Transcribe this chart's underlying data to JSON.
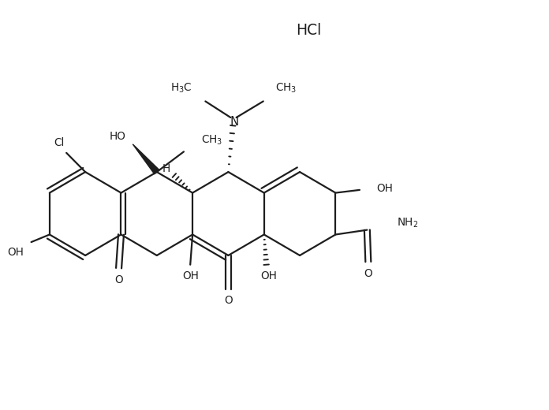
{
  "bg_color": "#ffffff",
  "line_color": "#1e1e1e",
  "lw": 1.6,
  "fs": 9.8,
  "figsize": [
    6.96,
    5.2
  ],
  "dpi": 100,
  "hcl": "HCl",
  "xlim": [
    0,
    9.5
  ],
  "ylim": [
    0,
    7.0
  ]
}
